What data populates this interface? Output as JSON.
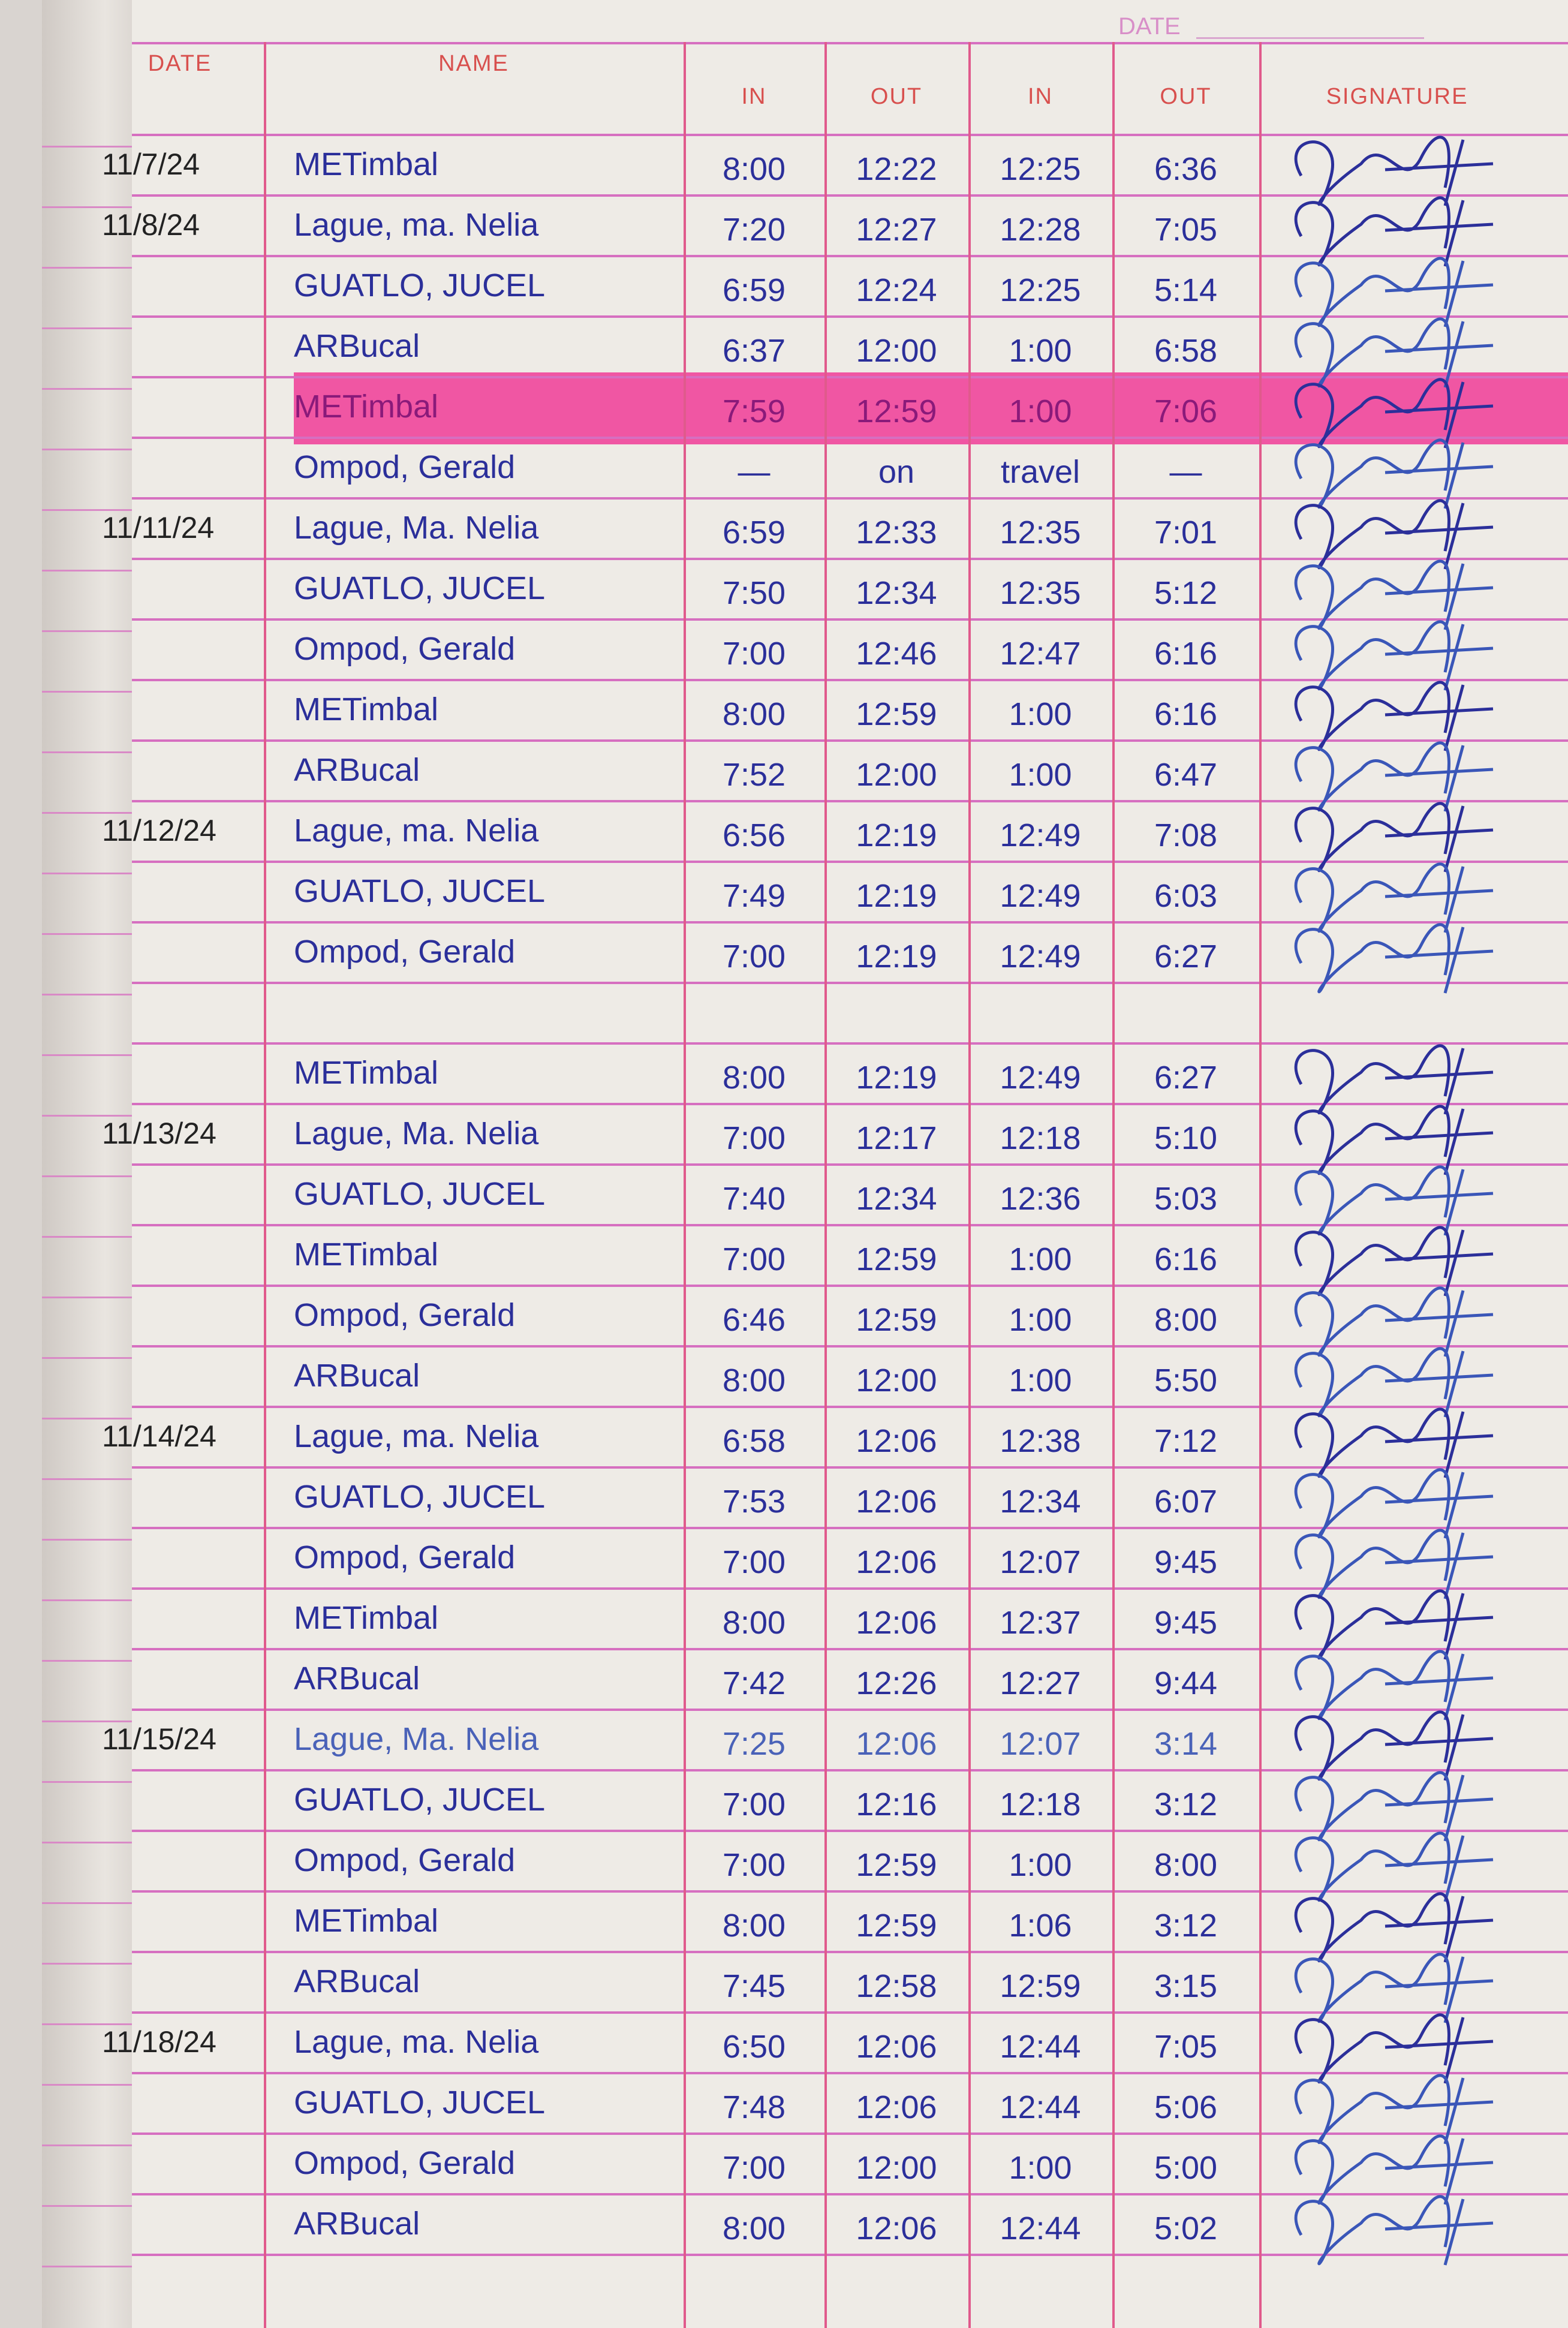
{
  "header": {
    "date_label": "DATE",
    "columns": [
      "DATE",
      "NAME",
      "IN",
      "OUT",
      "IN",
      "OUT",
      "SIGNATURE"
    ]
  },
  "colors": {
    "ink_dark": "#2b2f9a",
    "ink_light": "#4a62b8",
    "highlight": "#f03c96",
    "rule": "#d66fc0"
  },
  "rows": [
    {
      "date": "11/7/24",
      "name": "METimbal",
      "in1": "8:00",
      "out1": "12:22",
      "in2": "12:25",
      "out2": "6:36"
    },
    {
      "date": "11/8/24",
      "name": "Lague, ma. Nelia",
      "in1": "7:20",
      "out1": "12:27",
      "in2": "12:28",
      "out2": "7:05"
    },
    {
      "date": "",
      "name": "GUATLO, JUCEL",
      "in1": "6:59",
      "out1": "12:24",
      "in2": "12:25",
      "out2": "5:14"
    },
    {
      "date": "",
      "name": "ARBucal",
      "in1": "6:37",
      "out1": "12:00",
      "in2": "1:00",
      "out2": "6:58"
    },
    {
      "date": "",
      "name": "METimbal",
      "in1": "7:59",
      "out1": "12:59",
      "in2": "1:00",
      "out2": "7:06",
      "highlighted": true
    },
    {
      "date": "",
      "name": "Ompod, Gerald",
      "in1": "—",
      "out1": "on",
      "in2": "travel",
      "out2": "—"
    },
    {
      "date": "11/11/24",
      "name": "Lague, Ma. Nelia",
      "in1": "6:59",
      "out1": "12:33",
      "in2": "12:35",
      "out2": "7:01"
    },
    {
      "date": "",
      "name": "GUATLO, JUCEL",
      "in1": "7:50",
      "out1": "12:34",
      "in2": "12:35",
      "out2": "5:12"
    },
    {
      "date": "",
      "name": "Ompod, Gerald",
      "in1": "7:00",
      "out1": "12:46",
      "in2": "12:47",
      "out2": "6:16"
    },
    {
      "date": "",
      "name": "METimbal",
      "in1": "8:00",
      "out1": "12:59",
      "in2": "1:00",
      "out2": "6:16"
    },
    {
      "date": "",
      "name": "ARBucal",
      "in1": "7:52",
      "out1": "12:00",
      "in2": "1:00",
      "out2": "6:47"
    },
    {
      "date": "11/12/24",
      "name": "Lague, ma. Nelia",
      "in1": "6:56",
      "out1": "12:19",
      "in2": "12:49",
      "out2": "7:08"
    },
    {
      "date": "",
      "name": "GUATLO, JUCEL",
      "in1": "7:49",
      "out1": "12:19",
      "in2": "12:49",
      "out2": "6:03"
    },
    {
      "date": "",
      "name": "Ompod, Gerald",
      "in1": "7:00",
      "out1": "12:19",
      "in2": "12:49",
      "out2": "6:27"
    },
    {
      "date": "",
      "name": "",
      "in1": "",
      "out1": "",
      "in2": "",
      "out2": ""
    },
    {
      "date": "",
      "name": "METimbal",
      "in1": "8:00",
      "out1": "12:19",
      "in2": "12:49",
      "out2": "6:27"
    },
    {
      "date": "11/13/24",
      "name": "Lague, Ma. Nelia",
      "in1": "7:00",
      "out1": "12:17",
      "in2": "12:18",
      "out2": "5:10"
    },
    {
      "date": "",
      "name": "GUATLO, JUCEL",
      "in1": "7:40",
      "out1": "12:34",
      "in2": "12:36",
      "out2": "5:03"
    },
    {
      "date": "",
      "name": "METimbal",
      "in1": "7:00",
      "out1": "12:59",
      "in2": "1:00",
      "out2": "6:16"
    },
    {
      "date": "",
      "name": "Ompod, Gerald",
      "in1": "6:46",
      "out1": "12:59",
      "in2": "1:00",
      "out2": "8:00"
    },
    {
      "date": "",
      "name": "ARBucal",
      "in1": "8:00",
      "out1": "12:00",
      "in2": "1:00",
      "out2": "5:50"
    },
    {
      "date": "11/14/24",
      "name": "Lague, ma. Nelia",
      "in1": "6:58",
      "out1": "12:06",
      "in2": "12:38",
      "out2": "7:12"
    },
    {
      "date": "",
      "name": "GUATLO, JUCEL",
      "in1": "7:53",
      "out1": "12:06",
      "in2": "12:34",
      "out2": "6:07"
    },
    {
      "date": "",
      "name": "Ompod, Gerald",
      "in1": "7:00",
      "out1": "12:06",
      "in2": "12:07",
      "out2": "9:45"
    },
    {
      "date": "",
      "name": "METimbal",
      "in1": "8:00",
      "out1": "12:06",
      "in2": "12:37",
      "out2": "9:45"
    },
    {
      "date": "",
      "name": "ARBucal",
      "in1": "7:42",
      "out1": "12:26",
      "in2": "12:27",
      "out2": "9:44"
    },
    {
      "date": "11/15/24",
      "name": "Lague, Ma. Nelia",
      "in1": "7:25",
      "out1": "12:06",
      "in2": "12:07",
      "out2": "3:14",
      "light": true
    },
    {
      "date": "",
      "name": "GUATLO, JUCEL",
      "in1": "7:00",
      "out1": "12:16",
      "in2": "12:18",
      "out2": "3:12"
    },
    {
      "date": "",
      "name": "Ompod, Gerald",
      "in1": "7:00",
      "out1": "12:59",
      "in2": "1:00",
      "out2": "8:00"
    },
    {
      "date": "",
      "name": "METimbal",
      "in1": "8:00",
      "out1": "12:59",
      "in2": "1:06",
      "out2": "3:12"
    },
    {
      "date": "",
      "name": "ARBucal",
      "in1": "7:45",
      "out1": "12:58",
      "in2": "12:59",
      "out2": "3:15"
    },
    {
      "date": "11/18/24",
      "name": "Lague, ma. Nelia",
      "in1": "6:50",
      "out1": "12:06",
      "in2": "12:44",
      "out2": "7:05"
    },
    {
      "date": "",
      "name": "GUATLO, JUCEL",
      "in1": "7:48",
      "out1": "12:06",
      "in2": "12:44",
      "out2": "5:06"
    },
    {
      "date": "",
      "name": "Ompod, Gerald",
      "in1": "7:00",
      "out1": "12:00",
      "in2": "1:00",
      "out2": "5:00"
    },
    {
      "date": "",
      "name": "ARBucal",
      "in1": "8:00",
      "out1": "12:06",
      "in2": "12:44",
      "out2": "5:02"
    }
  ]
}
